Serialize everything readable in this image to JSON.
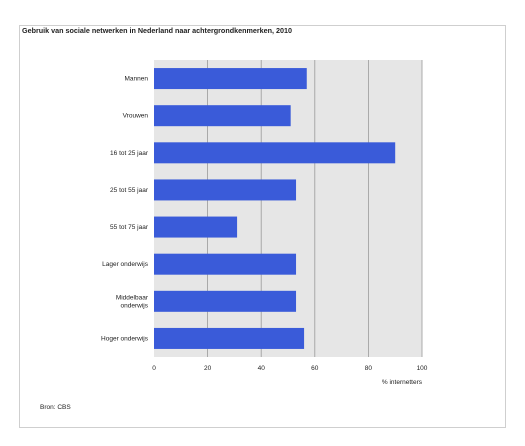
{
  "chart_data": {
    "type": "bar",
    "orientation": "horizontal",
    "title": "Gebruik van sociale netwerken in Nederland naar achtergrondkenmerken, 2010",
    "categories": [
      "Mannen",
      "Vrouwen",
      "16 tot 25 jaar",
      "25 tot 55 jaar",
      "55 tot 75 jaar",
      "Lager onderwijs",
      "Middelbaar onderwijs",
      "Hoger onderwijs"
    ],
    "values": [
      57,
      51,
      90,
      53,
      31,
      53,
      53,
      56
    ],
    "xlabel": "% internetters",
    "ylabel": "",
    "xlim": [
      0,
      100
    ],
    "xticks": [
      0,
      20,
      40,
      60,
      80,
      100
    ],
    "grid": true,
    "bar_color": "#3a5bd9",
    "source": "Bron: CBS"
  }
}
